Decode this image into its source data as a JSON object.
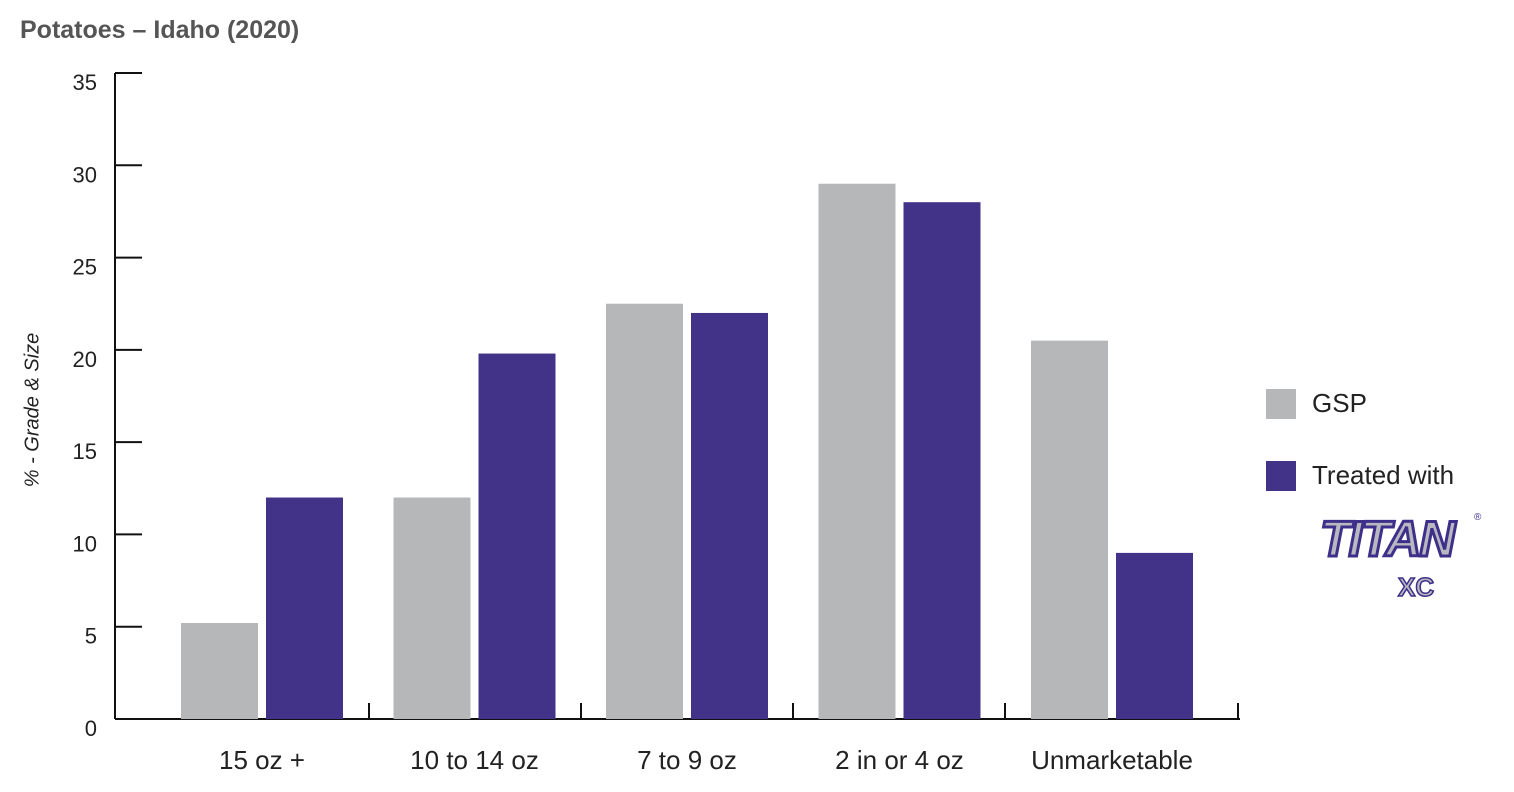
{
  "chart_data": {
    "type": "bar",
    "title": "Potatoes – Idaho (2020)",
    "ylabel": "% - Grade & Size",
    "xlabel": "",
    "ylim": [
      0,
      35
    ],
    "yticks": [
      "0",
      "5",
      "10",
      "15",
      "20",
      "25",
      "30",
      "35"
    ],
    "categories": [
      "15 oz +",
      "10 to 14 oz",
      "7 to 9 oz",
      "2 in or 4 oz",
      "Unmarketable"
    ],
    "series": [
      {
        "name": "GSP",
        "color": "#b6b7b9",
        "values": [
          5.2,
          12.0,
          22.5,
          29.0,
          20.5
        ]
      },
      {
        "name": "Treated with",
        "color": "#433388",
        "values": [
          12.0,
          19.8,
          22.0,
          28.0,
          9.0
        ]
      }
    ],
    "grid": false,
    "legend_position": "right"
  },
  "logo": {
    "word": "TITAN",
    "sub": "XC",
    "mark": "®"
  }
}
